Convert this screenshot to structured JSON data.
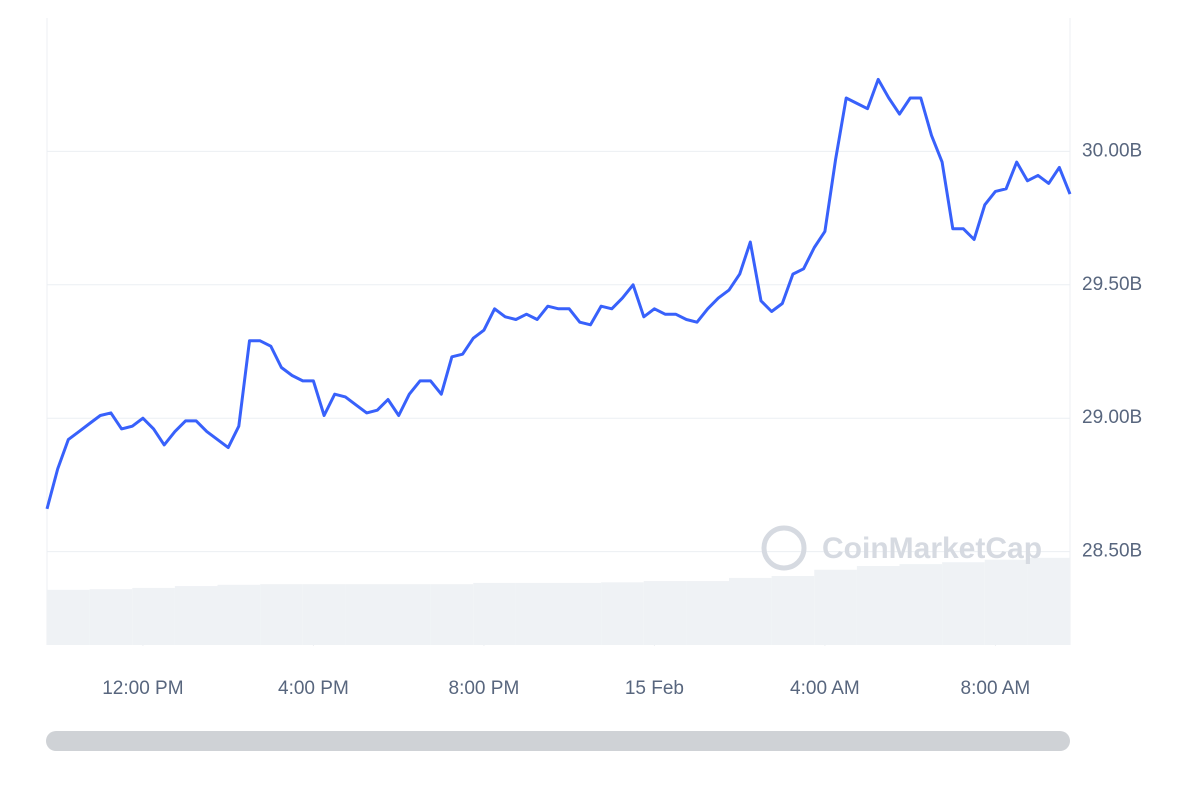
{
  "chart_data": {
    "type": "line",
    "watermark": "CoinMarketCap",
    "xlim": [
      9.75,
      33.75
    ],
    "xticks": [
      {
        "value": 12,
        "label": "12:00 PM"
      },
      {
        "value": 16,
        "label": "4:00 PM"
      },
      {
        "value": 20,
        "label": "8:00 PM"
      },
      {
        "value": 24,
        "label": "15 Feb"
      },
      {
        "value": 28,
        "label": "4:00 AM"
      },
      {
        "value": 32,
        "label": "8:00 AM"
      }
    ],
    "ylim": [
      28.15,
      30.5
    ],
    "yticks": [
      {
        "value": 28.5,
        "label": "28.50B"
      },
      {
        "value": 29,
        "label": "29.00B"
      },
      {
        "value": 29.5,
        "label": "29.50B"
      },
      {
        "value": 30,
        "label": "30.00B"
      }
    ],
    "grid": true,
    "x": [
      9.75,
      10,
      10.25,
      10.5,
      10.75,
      11,
      11.25,
      11.5,
      11.75,
      12,
      12.25,
      12.5,
      12.75,
      13,
      13.25,
      13.5,
      13.75,
      14,
      14.25,
      14.5,
      14.75,
      15,
      15.25,
      15.5,
      15.75,
      16,
      16.25,
      16.5,
      16.75,
      17,
      17.25,
      17.5,
      17.75,
      18,
      18.25,
      18.5,
      18.75,
      19,
      19.25,
      19.5,
      19.75,
      20,
      20.25,
      20.5,
      20.75,
      21,
      21.25,
      21.5,
      21.75,
      22,
      22.25,
      22.5,
      22.75,
      23,
      23.25,
      23.5,
      23.75,
      24,
      24.25,
      24.5,
      24.75,
      25,
      25.25,
      25.5,
      25.75,
      26,
      26.25,
      26.5,
      26.75,
      27,
      27.25,
      27.5,
      27.75,
      28,
      28.25,
      28.5,
      28.75,
      29,
      29.25,
      29.5,
      29.75,
      30,
      30.25,
      30.5,
      30.75,
      31,
      31.25,
      31.5,
      31.75,
      32,
      32.25,
      32.5,
      32.75,
      33,
      33.25,
      33.5,
      33.75
    ],
    "series": [
      {
        "color": "#3861fb",
        "values": [
          28.66,
          28.81,
          28.92,
          28.95,
          28.98,
          29.01,
          29.02,
          28.96,
          28.97,
          29.0,
          28.96,
          28.9,
          28.95,
          28.99,
          28.99,
          28.95,
          28.92,
          28.89,
          28.97,
          29.29,
          29.29,
          29.27,
          29.19,
          29.16,
          29.14,
          29.14,
          29.01,
          29.09,
          29.08,
          29.05,
          29.02,
          29.03,
          29.07,
          29.01,
          29.09,
          29.14,
          29.14,
          29.09,
          29.23,
          29.24,
          29.3,
          29.33,
          29.41,
          29.38,
          29.37,
          29.39,
          29.37,
          29.42,
          29.41,
          29.41,
          29.36,
          29.35,
          29.42,
          29.41,
          29.45,
          29.5,
          29.38,
          29.41,
          29.39,
          29.39,
          29.37,
          29.36,
          29.41,
          29.45,
          29.48,
          29.54,
          29.66,
          29.44,
          29.4,
          29.43,
          29.54,
          29.56,
          29.64,
          29.7,
          29.97,
          30.2,
          30.18,
          30.16,
          30.27,
          30.2,
          30.14,
          30.2,
          30.2,
          30.06,
          29.96,
          29.71,
          29.71,
          29.67,
          29.8,
          29.85,
          29.86,
          29.96,
          29.89,
          29.91,
          29.88,
          29.94,
          29.84
        ]
      }
    ],
    "volume": {
      "axis": "y2",
      "color": "#eff2f5",
      "x": [
        9.75,
        10.75,
        11.75,
        12.75,
        13.75,
        14.75,
        15.75,
        16.75,
        17.75,
        18.75,
        19.75,
        20.75,
        21.75,
        22.75,
        23.75,
        24.75,
        25.75,
        26.75,
        27.75,
        28.75,
        29.75,
        30.75,
        31.75,
        32.75
      ],
      "values": [
        8.8,
        8.9,
        9.1,
        9.4,
        9.6,
        9.7,
        9.7,
        9.7,
        9.7,
        9.7,
        9.9,
        9.9,
        9.9,
        10.0,
        10.2,
        10.2,
        10.7,
        11.0,
        12.0,
        12.6,
        12.9,
        13.2,
        13.6,
        13.9
      ]
    },
    "y2lim": [
      0,
      100
    ]
  }
}
